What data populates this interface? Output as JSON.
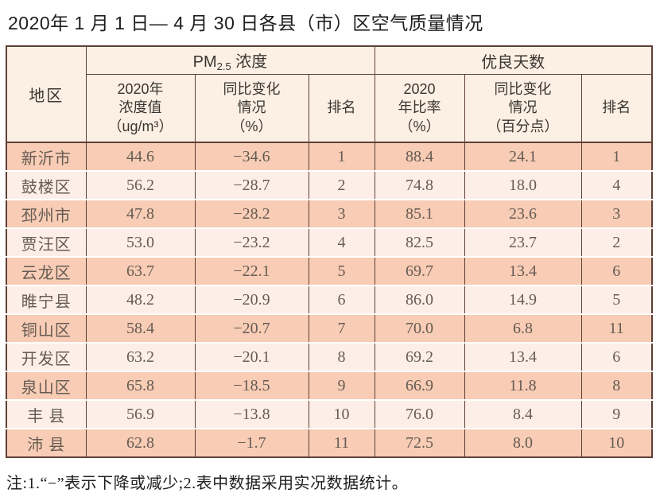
{
  "page": {
    "title": "2020年 1 月 1 日— 4 月 30 日各县（市）区空气质量情况"
  },
  "table": {
    "region_header": "地区",
    "groups": {
      "pm": {
        "prefix": "PM",
        "sub": "2.5",
        "suffix": " 浓度"
      },
      "days": "优良天数"
    },
    "subheaders": {
      "pm_value": "2020年\n浓度值\n（ug/m³）",
      "pm_change": "同比变化\n情况\n（%）",
      "pm_rank": "排名",
      "days_rate": "2020\n年比率\n（%）",
      "days_change": "同比变化\n情况\n（百分点）",
      "days_rank": "排名"
    },
    "rows": [
      {
        "region": "新沂市",
        "pm": "44.6",
        "pm_change": "−34.6",
        "pm_rank": "1",
        "days": "88.4",
        "days_change": "24.1",
        "days_rank": "1"
      },
      {
        "region": "鼓楼区",
        "pm": "56.2",
        "pm_change": "−28.7",
        "pm_rank": "2",
        "days": "74.8",
        "days_change": "18.0",
        "days_rank": "4"
      },
      {
        "region": "邳州市",
        "pm": "47.8",
        "pm_change": "−28.2",
        "pm_rank": "3",
        "days": "85.1",
        "days_change": "23.6",
        "days_rank": "3"
      },
      {
        "region": "贾汪区",
        "pm": "53.0",
        "pm_change": "−23.2",
        "pm_rank": "4",
        "days": "82.5",
        "days_change": "23.7",
        "days_rank": "2"
      },
      {
        "region": "云龙区",
        "pm": "63.7",
        "pm_change": "−22.1",
        "pm_rank": "5",
        "days": "69.7",
        "days_change": "13.4",
        "days_rank": "6"
      },
      {
        "region": "睢宁县",
        "pm": "48.2",
        "pm_change": "−20.9",
        "pm_rank": "6",
        "days": "86.0",
        "days_change": "14.9",
        "days_rank": "5"
      },
      {
        "region": "铜山区",
        "pm": "58.4",
        "pm_change": "−20.7",
        "pm_rank": "7",
        "days": "70.0",
        "days_change": "6.8",
        "days_rank": "11"
      },
      {
        "region": "开发区",
        "pm": "63.2",
        "pm_change": "−20.1",
        "pm_rank": "8",
        "days": "69.2",
        "days_change": "13.4",
        "days_rank": "6"
      },
      {
        "region": "泉山区",
        "pm": "65.8",
        "pm_change": "−18.5",
        "pm_rank": "9",
        "days": "66.9",
        "days_change": "11.8",
        "days_rank": "8"
      },
      {
        "region": "丰 县",
        "pm": "56.9",
        "pm_change": "−13.8",
        "pm_rank": "10",
        "days": "76.0",
        "days_change": "8.4",
        "days_rank": "9"
      },
      {
        "region": "沛 县",
        "pm": "62.8",
        "pm_change": "−1.7",
        "pm_rank": "11",
        "days": "72.5",
        "days_change": "8.0",
        "days_rank": "10"
      }
    ]
  },
  "footnote": "注:1.“−”表示下降或减少;2.表中数据采用实况数据统计。",
  "colors": {
    "line": "#5e4036",
    "row_odd": "#f8ccb5",
    "row_even": "#fdefe8",
    "header_bg": "#fbf0e3"
  }
}
